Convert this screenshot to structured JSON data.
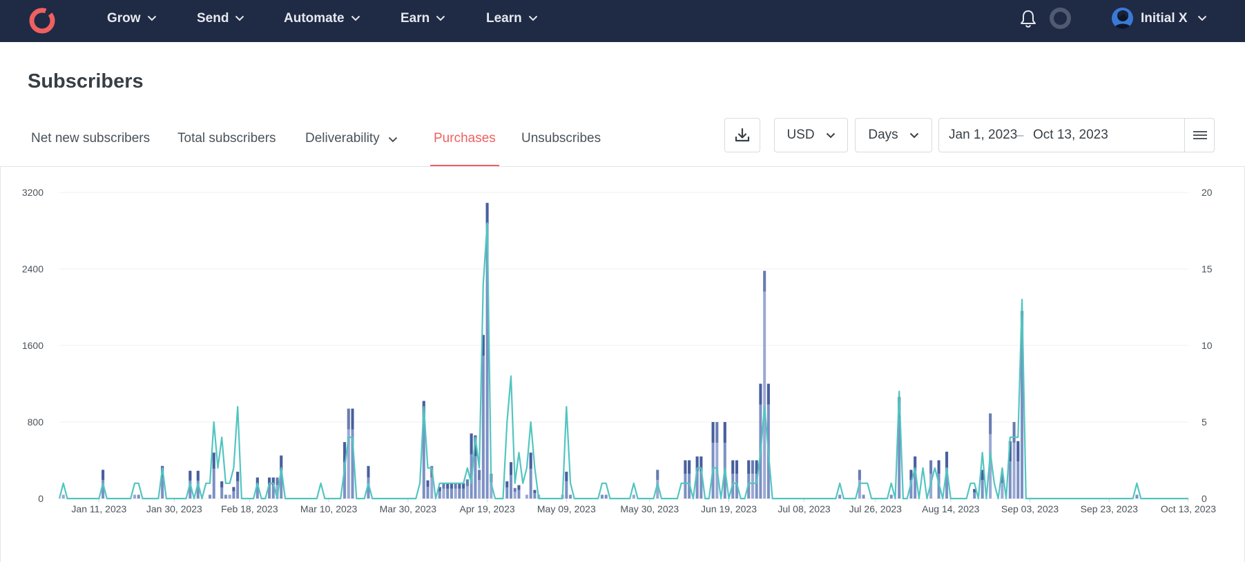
{
  "nav": {
    "items": [
      {
        "label": "Grow"
      },
      {
        "label": "Send"
      },
      {
        "label": "Automate"
      },
      {
        "label": "Earn"
      },
      {
        "label": "Learn"
      }
    ],
    "user": {
      "name": "Initial X"
    }
  },
  "page": {
    "title": "Subscribers"
  },
  "tabs": [
    {
      "label": "Net new subscribers"
    },
    {
      "label": "Total subscribers"
    },
    {
      "label": "Deliverability"
    },
    {
      "label": "Purchases"
    },
    {
      "label": "Unsubscribes"
    }
  ],
  "active_tab": "Purchases",
  "controls": {
    "currency": "USD",
    "interval": "Days",
    "date_from": "Jan 1, 2023",
    "date_separator": "–",
    "date_to": "Oct 13, 2023"
  },
  "colors": {
    "nav_bg": "#1f2a44",
    "accent": "#ef6060",
    "bar_light": "#9aa8d4",
    "bar_mid": "#7b90c4",
    "bar_dark": "#3f5796",
    "line": "#52c5c0",
    "grid": "#efefef"
  },
  "icons": {
    "logo": "convertkit-logo",
    "notifications": "bell-icon",
    "status": "ring-icon",
    "download": "download-icon",
    "date_menu": "hamburger-icon",
    "dropdown": "chevron-down-icon"
  },
  "chart_data": {
    "type": "bar",
    "title": "",
    "xlabel": "",
    "ylabel": "",
    "y2label": "",
    "x_start": "2023-01-01",
    "x_end": "2023-10-13",
    "x_tick_labels": [
      "Jan 11, 2023",
      "Jan 30, 2023",
      "Feb 18, 2023",
      "Mar 10, 2023",
      "Mar 30, 2023",
      "Apr 19, 2023",
      "May 09, 2023",
      "May 30, 2023",
      "Jun 19, 2023",
      "Jul 08, 2023",
      "Jul 26, 2023",
      "Aug 14, 2023",
      "Sep 03, 2023",
      "Sep 23, 2023",
      "Oct 13, 2023"
    ],
    "x_ticks": [
      "2023-01-11",
      "2023-01-30",
      "2023-02-18",
      "2023-03-10",
      "2023-03-30",
      "2023-04-19",
      "2023-05-09",
      "2023-05-30",
      "2023-06-19",
      "2023-07-08",
      "2023-07-26",
      "2023-08-14",
      "2023-09-03",
      "2023-09-23",
      "2023-10-13"
    ],
    "ylim": [
      0,
      3200
    ],
    "y_ticks": [
      0,
      800,
      1600,
      2400,
      3200
    ],
    "y2lim": [
      0,
      20
    ],
    "y2_ticks": [
      0,
      5,
      10,
      15,
      20
    ],
    "grid": true,
    "bar_series": [
      {
        "points": [
          [
            "2023-01-02",
            40
          ],
          [
            "2023-01-12",
            300
          ],
          [
            "2023-01-20",
            40
          ],
          [
            "2023-01-21",
            40
          ],
          [
            "2023-01-27",
            340
          ],
          [
            "2023-02-03",
            290
          ],
          [
            "2023-02-05",
            290
          ],
          [
            "2023-02-08",
            40
          ],
          [
            "2023-02-09",
            480
          ],
          [
            "2023-02-11",
            180
          ],
          [
            "2023-02-12",
            40
          ],
          [
            "2023-02-13",
            40
          ],
          [
            "2023-02-14",
            120
          ],
          [
            "2023-02-15",
            280
          ],
          [
            "2023-02-20",
            220
          ],
          [
            "2023-02-23",
            220
          ],
          [
            "2023-02-24",
            220
          ],
          [
            "2023-02-25",
            220
          ],
          [
            "2023-02-26",
            450
          ],
          [
            "2023-03-14",
            590
          ],
          [
            "2023-03-15",
            940
          ],
          [
            "2023-03-16",
            940
          ],
          [
            "2023-03-20",
            340
          ],
          [
            "2023-04-03",
            1020
          ],
          [
            "2023-04-04",
            190
          ],
          [
            "2023-04-05",
            340
          ],
          [
            "2023-04-07",
            120
          ],
          [
            "2023-04-08",
            160
          ],
          [
            "2023-04-09",
            160
          ],
          [
            "2023-04-10",
            160
          ],
          [
            "2023-04-11",
            160
          ],
          [
            "2023-04-12",
            160
          ],
          [
            "2023-04-13",
            160
          ],
          [
            "2023-04-14",
            200
          ],
          [
            "2023-04-15",
            680
          ],
          [
            "2023-04-16",
            660
          ],
          [
            "2023-04-17",
            300
          ],
          [
            "2023-04-18",
            1710
          ],
          [
            "2023-04-19",
            3090
          ],
          [
            "2023-04-20",
            260
          ],
          [
            "2023-04-24",
            180
          ],
          [
            "2023-04-25",
            380
          ],
          [
            "2023-04-26",
            110
          ],
          [
            "2023-04-27",
            140
          ],
          [
            "2023-04-29",
            40
          ],
          [
            "2023-04-30",
            480
          ],
          [
            "2023-05-01",
            90
          ],
          [
            "2023-05-02",
            40
          ],
          [
            "2023-05-08",
            40
          ],
          [
            "2023-05-09",
            280
          ],
          [
            "2023-05-10",
            40
          ],
          [
            "2023-05-18",
            40
          ],
          [
            "2023-05-19",
            40
          ],
          [
            "2023-05-26",
            40
          ],
          [
            "2023-06-01",
            300
          ],
          [
            "2023-06-08",
            400
          ],
          [
            "2023-06-09",
            400
          ],
          [
            "2023-06-11",
            440
          ],
          [
            "2023-06-12",
            440
          ],
          [
            "2023-06-15",
            800
          ],
          [
            "2023-06-16",
            800
          ],
          [
            "2023-06-18",
            800
          ],
          [
            "2023-06-20",
            400
          ],
          [
            "2023-06-21",
            400
          ],
          [
            "2023-06-24",
            400
          ],
          [
            "2023-06-25",
            400
          ],
          [
            "2023-06-26",
            400
          ],
          [
            "2023-06-27",
            1200
          ],
          [
            "2023-06-28",
            2380
          ],
          [
            "2023-06-29",
            1200
          ],
          [
            "2023-07-17",
            40
          ],
          [
            "2023-07-22",
            300
          ],
          [
            "2023-07-23",
            40
          ],
          [
            "2023-07-30",
            40
          ],
          [
            "2023-08-01",
            1060
          ],
          [
            "2023-08-04",
            300
          ],
          [
            "2023-08-05",
            440
          ],
          [
            "2023-08-09",
            400
          ],
          [
            "2023-08-11",
            400
          ],
          [
            "2023-08-13",
            490
          ],
          [
            "2023-08-20",
            100
          ],
          [
            "2023-08-22",
            300
          ],
          [
            "2023-08-24",
            890
          ],
          [
            "2023-08-27",
            250
          ],
          [
            "2023-08-29",
            600
          ],
          [
            "2023-08-30",
            800
          ],
          [
            "2023-08-31",
            600
          ],
          [
            "2023-09-01",
            1960
          ],
          [
            "2023-09-30",
            40
          ]
        ]
      }
    ],
    "line_series": [
      {
        "points": [
          [
            "2023-01-02",
            1
          ],
          [
            "2023-01-12",
            1
          ],
          [
            "2023-01-20",
            1
          ],
          [
            "2023-01-21",
            1
          ],
          [
            "2023-01-27",
            2
          ],
          [
            "2023-02-03",
            1
          ],
          [
            "2023-02-05",
            1
          ],
          [
            "2023-02-07",
            1
          ],
          [
            "2023-02-08",
            1
          ],
          [
            "2023-02-09",
            5
          ],
          [
            "2023-02-10",
            2
          ],
          [
            "2023-02-11",
            4
          ],
          [
            "2023-02-12",
            1
          ],
          [
            "2023-02-13",
            1
          ],
          [
            "2023-02-14",
            2
          ],
          [
            "2023-02-15",
            6
          ],
          [
            "2023-02-20",
            1
          ],
          [
            "2023-02-23",
            1
          ],
          [
            "2023-02-24",
            1
          ],
          [
            "2023-02-26",
            2
          ],
          [
            "2023-03-08",
            1
          ],
          [
            "2023-03-14",
            2
          ],
          [
            "2023-03-15",
            4
          ],
          [
            "2023-03-16",
            4
          ],
          [
            "2023-03-20",
            1
          ],
          [
            "2023-04-02",
            1
          ],
          [
            "2023-04-03",
            6
          ],
          [
            "2023-04-04",
            2
          ],
          [
            "2023-04-05",
            2
          ],
          [
            "2023-04-07",
            1
          ],
          [
            "2023-04-08",
            1
          ],
          [
            "2023-04-09",
            1
          ],
          [
            "2023-04-10",
            1
          ],
          [
            "2023-04-11",
            1
          ],
          [
            "2023-04-12",
            1
          ],
          [
            "2023-04-13",
            1
          ],
          [
            "2023-04-14",
            2
          ],
          [
            "2023-04-15",
            1
          ],
          [
            "2023-04-16",
            4
          ],
          [
            "2023-04-17",
            2
          ],
          [
            "2023-04-18",
            14
          ],
          [
            "2023-04-19",
            18
          ],
          [
            "2023-04-20",
            1
          ],
          [
            "2023-04-24",
            5
          ],
          [
            "2023-04-25",
            8
          ],
          [
            "2023-04-26",
            1
          ],
          [
            "2023-04-27",
            3
          ],
          [
            "2023-04-28",
            1
          ],
          [
            "2023-04-29",
            2
          ],
          [
            "2023-04-30",
            5
          ],
          [
            "2023-05-01",
            2
          ],
          [
            "2023-05-09",
            6
          ],
          [
            "2023-05-10",
            1
          ],
          [
            "2023-05-18",
            1
          ],
          [
            "2023-05-19",
            1
          ],
          [
            "2023-05-26",
            1
          ],
          [
            "2023-06-01",
            1
          ],
          [
            "2023-06-07",
            1
          ],
          [
            "2023-06-08",
            1
          ],
          [
            "2023-06-09",
            1
          ],
          [
            "2023-06-11",
            2
          ],
          [
            "2023-06-12",
            2
          ],
          [
            "2023-06-15",
            2
          ],
          [
            "2023-06-16",
            2
          ],
          [
            "2023-06-18",
            2
          ],
          [
            "2023-06-20",
            1
          ],
          [
            "2023-06-21",
            1
          ],
          [
            "2023-06-24",
            1
          ],
          [
            "2023-06-25",
            1
          ],
          [
            "2023-06-26",
            1
          ],
          [
            "2023-06-27",
            3
          ],
          [
            "2023-06-28",
            6
          ],
          [
            "2023-06-29",
            3
          ],
          [
            "2023-07-17",
            1
          ],
          [
            "2023-07-22",
            1
          ],
          [
            "2023-07-23",
            1
          ],
          [
            "2023-07-24",
            1
          ],
          [
            "2023-07-30",
            1
          ],
          [
            "2023-08-01",
            7
          ],
          [
            "2023-08-04",
            1
          ],
          [
            "2023-08-05",
            2
          ],
          [
            "2023-08-07",
            2
          ],
          [
            "2023-08-09",
            1
          ],
          [
            "2023-08-10",
            2
          ],
          [
            "2023-08-11",
            1
          ],
          [
            "2023-08-13",
            2
          ],
          [
            "2023-08-19",
            1
          ],
          [
            "2023-08-20",
            1
          ],
          [
            "2023-08-22",
            3
          ],
          [
            "2023-08-24",
            3
          ],
          [
            "2023-08-25",
            1
          ],
          [
            "2023-08-27",
            2
          ],
          [
            "2023-08-29",
            4
          ],
          [
            "2023-08-30",
            4
          ],
          [
            "2023-08-31",
            4
          ],
          [
            "2023-09-01",
            13
          ],
          [
            "2023-09-30",
            1
          ]
        ]
      }
    ]
  }
}
